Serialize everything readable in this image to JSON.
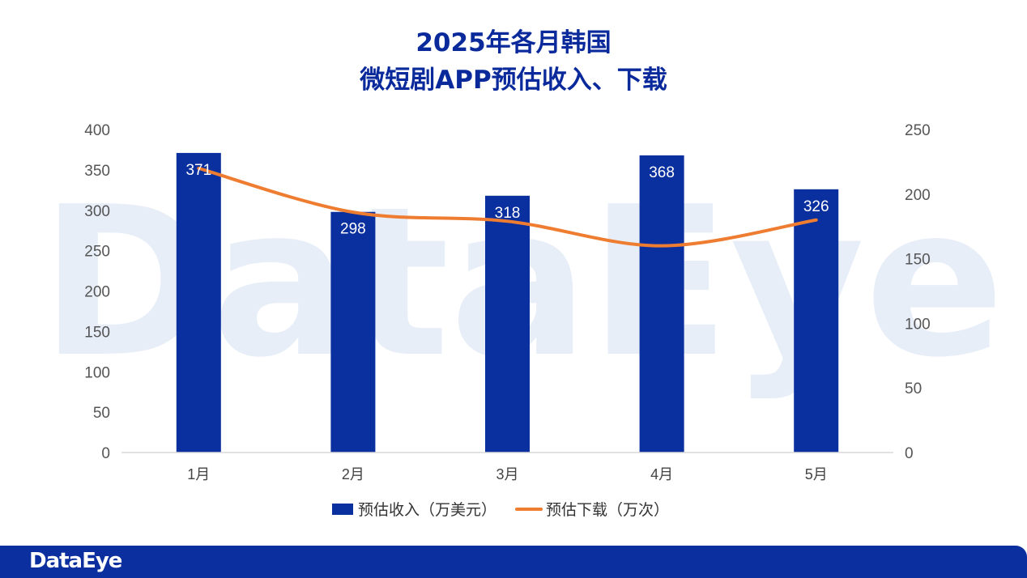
{
  "chart_data": {
    "type": "bar",
    "title_lines": [
      "2025年各月韩国",
      "微短剧APP预估收入、下载"
    ],
    "categories": [
      "1月",
      "2月",
      "3月",
      "4月",
      "5月"
    ],
    "series": [
      {
        "name": "预估收入（万美元）",
        "type": "bar",
        "axis": "left",
        "values": [
          371,
          298,
          318,
          368,
          326
        ]
      },
      {
        "name": "预估下载（万次）",
        "type": "line",
        "axis": "right",
        "values": [
          220,
          186,
          179,
          160,
          180
        ]
      }
    ],
    "ylim_left": [
      0,
      400
    ],
    "ylim_right": [
      0,
      250
    ],
    "yticks_left": [
      "0",
      "50",
      "100",
      "150",
      "200",
      "250",
      "300",
      "350",
      "400"
    ],
    "yticks_right": [
      "0",
      "50",
      "100",
      "150",
      "200",
      "250"
    ],
    "legend_position": "bottom",
    "grid": false,
    "colors": {
      "bar": "#0a2f9e",
      "line": "#ee7d31",
      "title": "#0a2a9c"
    }
  },
  "watermark": "DataEye",
  "footer": {
    "logo": "DataEye",
    "color": "#0b2f9e"
  }
}
